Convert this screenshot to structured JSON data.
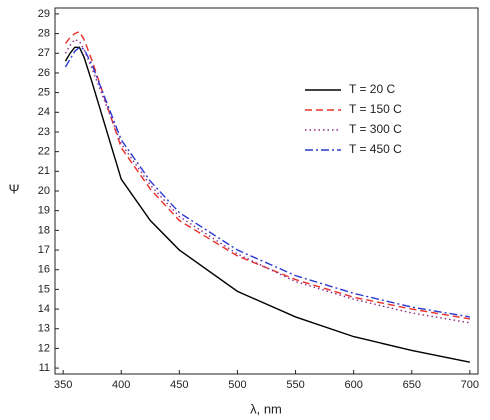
{
  "chart_data": {
    "type": "line",
    "x_label": "λ, nm",
    "y_label": "Ψ",
    "x": [
      352,
      356,
      360,
      364,
      368,
      375,
      400,
      425,
      450,
      500,
      550,
      600,
      650,
      700
    ],
    "series": [
      {
        "name": "T = 20 C",
        "color": "#000000",
        "dash": "solid",
        "values": [
          26.6,
          27.0,
          27.3,
          27.3,
          26.8,
          25.5,
          20.6,
          18.5,
          17.0,
          14.9,
          13.6,
          12.6,
          11.9,
          11.3
        ]
      },
      {
        "name": "T = 150 C",
        "color": "#e8302a",
        "dash": "dashed",
        "values": [
          27.5,
          27.8,
          28.0,
          28.1,
          27.7,
          26.6,
          22.2,
          20.1,
          18.5,
          16.7,
          15.5,
          14.6,
          14.0,
          13.5
        ]
      },
      {
        "name": "T = 300 C",
        "color": "#8a2a8a",
        "dash": "dotted",
        "values": [
          27.0,
          27.4,
          27.7,
          27.6,
          27.2,
          26.2,
          22.4,
          20.3,
          18.7,
          16.8,
          15.4,
          14.5,
          13.8,
          13.3
        ]
      },
      {
        "name": "T = 450 C",
        "color": "#2a3ad0",
        "dash": "dashdot",
        "values": [
          26.3,
          26.7,
          27.1,
          27.3,
          27.2,
          26.4,
          22.6,
          20.5,
          18.9,
          17.0,
          15.7,
          14.8,
          14.1,
          13.6
        ]
      }
    ],
    "xlim": [
      343,
      707
    ],
    "ylim": [
      10.7,
      29.3
    ],
    "xticks": [
      350,
      400,
      450,
      500,
      550,
      600,
      650,
      700
    ],
    "yticks": [
      11,
      12,
      13,
      14,
      15,
      16,
      17,
      18,
      19,
      20,
      21,
      22,
      23,
      24,
      25,
      26,
      27,
      28,
      29
    ],
    "legend": "upper right"
  }
}
